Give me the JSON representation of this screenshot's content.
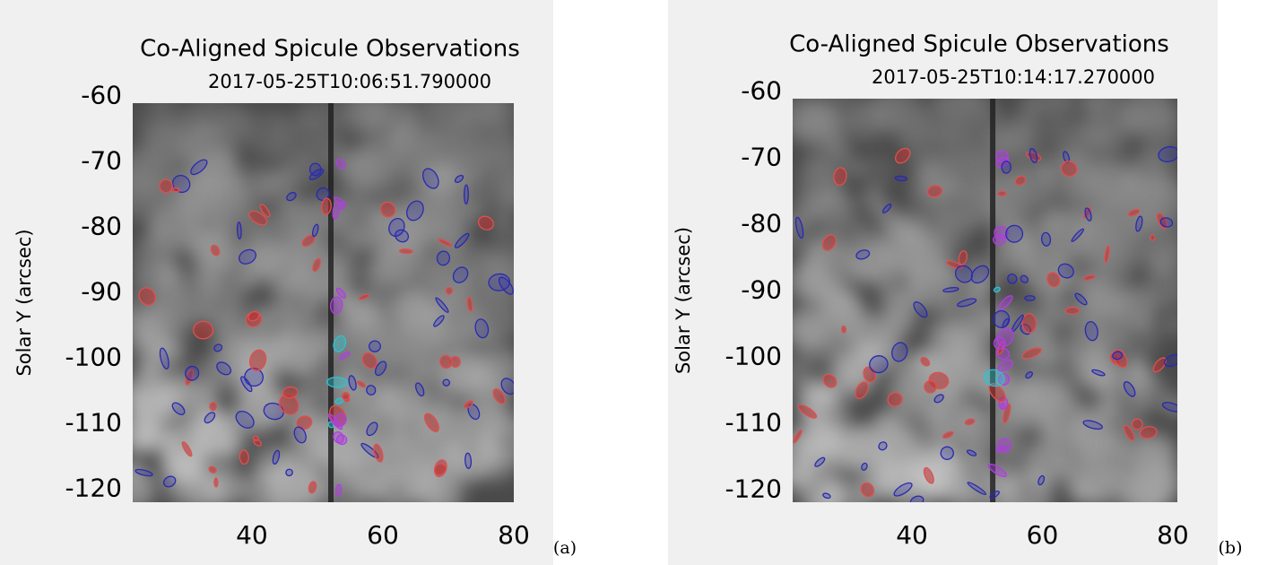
{
  "charts": [
    {
      "chart_data": {
        "type": "image",
        "title": "Co-Aligned Spicule Observations",
        "subtitle": "2017-05-25T10:06:51.790000",
        "y_label": "Solar Y (arcsec)",
        "panel_label": "(a)",
        "xlim": [
          21.8,
          80
        ],
        "xticks": [
          40,
          60,
          80
        ],
        "ylim": [
          -122,
          -61
        ],
        "yticks": [
          -60,
          -70,
          -80,
          -90,
          -100,
          -110,
          -120
        ]
      }
    },
    {
      "chart_data": {
        "type": "image",
        "title": "Co-Aligned Spicule Observations",
        "subtitle": "2017-05-25T10:14:17.270000",
        "y_label": "Solar Y (arcsec)",
        "panel_label": "(b)",
        "xlim": [
          21.7,
          80.7
        ],
        "xticks": [
          40,
          60,
          80
        ],
        "ylim": [
          -121.8,
          -61
        ],
        "yticks": [
          -60,
          -70,
          -80,
          -90,
          -100,
          -110,
          -120
        ]
      }
    }
  ]
}
